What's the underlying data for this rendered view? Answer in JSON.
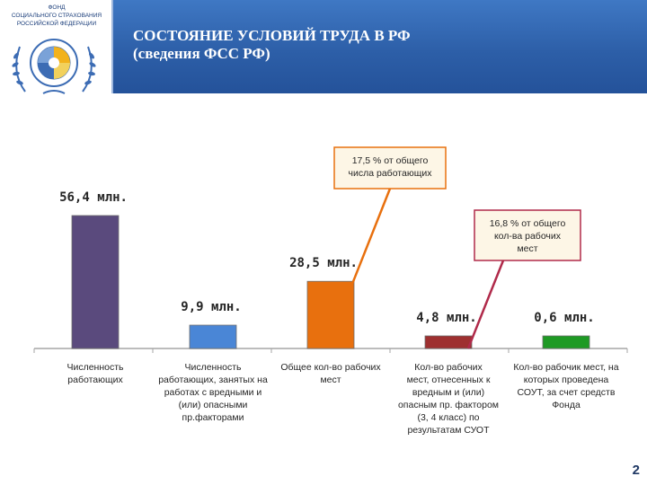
{
  "header": {
    "org_name": [
      "ФОНД",
      "СОЦИАЛЬНОГО СТРАХОВАНИЯ",
      "РОССИЙСКОЙ ФЕДЕРАЦИИ"
    ],
    "title_line_1": "СОСТОЯНИЕ УСЛОВИЙ ТРУДА В РФ",
    "title_line_2": "(сведения ФСС РФ)"
  },
  "colors": {
    "bars": [
      "#5a4a7d",
      "#4a86d6",
      "#e8700e",
      "#9e3030",
      "#1e9a24"
    ],
    "header": "#2d5fa8"
  },
  "chart_data": {
    "type": "bar",
    "categories": [
      [
        "Численность",
        "работающих"
      ],
      [
        "Численность",
        "работающих, занятых на",
        "работах с вредными и",
        "(или) опасными",
        "пр.факторами"
      ],
      [
        "Общее кол-во рабочих",
        "мест"
      ],
      [
        "Кол-во рабочих",
        "мест, отнесенных к",
        "вредным и (или)",
        "опасным пр. фактором",
        "(3, 4 класс) по",
        "результатам СУОТ"
      ],
      [
        "Кол-во рабочик мест, на",
        "которых проведена",
        "СОУТ, за счет средств",
        "Фонда"
      ]
    ],
    "values": [
      56.4,
      9.9,
      28.5,
      4.8,
      0.6
    ],
    "value_labels": [
      "56,4 млн.",
      "9,9 млн.",
      "28,5 млн.",
      "4,8 млн.",
      "0,6 млн."
    ],
    "annotations": [
      {
        "lines": [
          "17,5 % от общего",
          "числа работающих"
        ],
        "target_bar": 2,
        "border": "#e8700e"
      },
      {
        "lines": [
          "16,8 % от общего",
          "кол-ва рабочих",
          "мест"
        ],
        "target_bar": 3,
        "border": "#b02a4a"
      }
    ],
    "title": "",
    "xlabel": "",
    "ylabel": "",
    "grid": false,
    "legend": "none"
  },
  "footer": {
    "page_number": "2"
  }
}
